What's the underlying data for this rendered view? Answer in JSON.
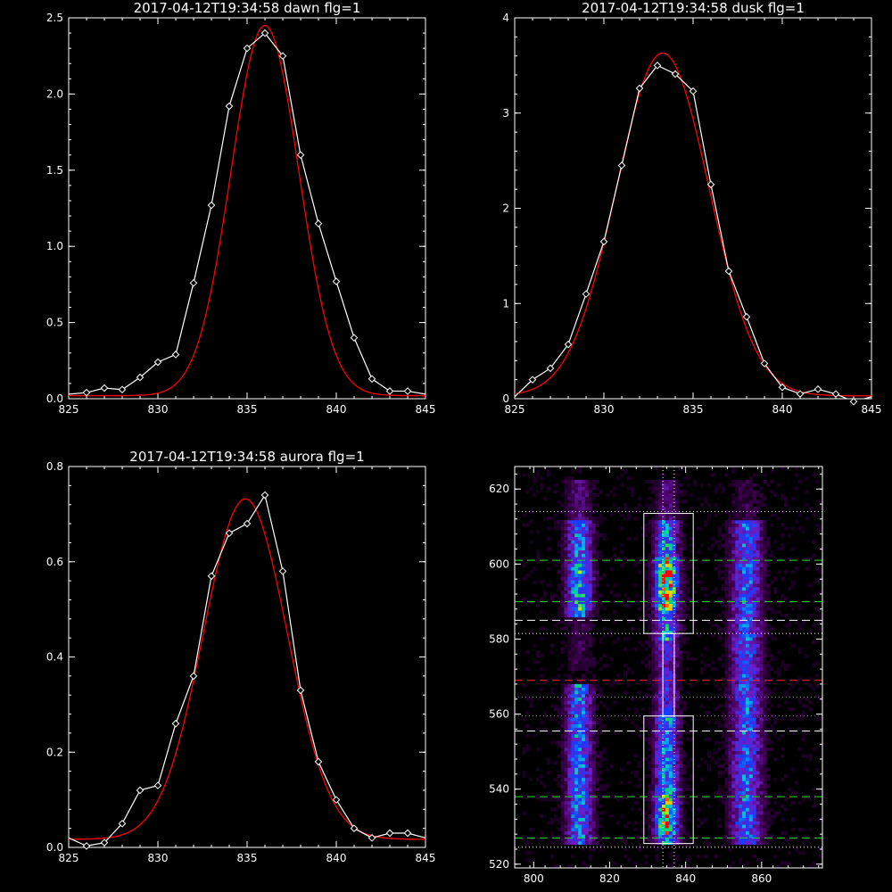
{
  "colors": {
    "background": "#000000",
    "data": "#ffffff",
    "fit": "#ff0000",
    "green_guide": "#22dd22",
    "red_guide": "#ff2222",
    "white_guide": "#ffffff"
  },
  "chart_data": [
    {
      "type": "line",
      "title": "2017-04-12T19:34:58 dawn flg=1",
      "xlim": [
        825,
        845
      ],
      "ylim": [
        0,
        2.5
      ],
      "xticks": [
        "825",
        "830",
        "835",
        "840",
        "845"
      ],
      "yticks": [
        "0.0",
        "0.5",
        "1.0",
        "1.5",
        "2.0",
        "2.5"
      ],
      "series": [
        {
          "role": "data",
          "marker": "diamond",
          "x": [
            825,
            826,
            827,
            828,
            829,
            830,
            831,
            832,
            833,
            834,
            835,
            836,
            837,
            838,
            839,
            840,
            841,
            842,
            843,
            844,
            845
          ],
          "y": [
            0.03,
            0.04,
            0.07,
            0.06,
            0.14,
            0.24,
            0.29,
            0.76,
            1.27,
            1.92,
            2.3,
            2.4,
            2.25,
            1.6,
            1.15,
            0.77,
            0.4,
            0.13,
            0.05,
            0.05,
            0.03
          ]
        },
        {
          "role": "fit",
          "center": 836.0,
          "amplitude": 2.43,
          "sigma": 1.9,
          "offset": 0.02
        }
      ]
    },
    {
      "type": "line",
      "title": "2017-04-12T19:34:58 dusk flg=1",
      "xlim": [
        825,
        845
      ],
      "ylim": [
        0,
        4
      ],
      "xticks": [
        "825",
        "830",
        "835",
        "840",
        "845"
      ],
      "yticks": [
        "0",
        "1",
        "2",
        "3",
        "4"
      ],
      "series": [
        {
          "role": "data",
          "marker": "diamond",
          "x": [
            825,
            826,
            827,
            828,
            829,
            830,
            831,
            832,
            833,
            834,
            835,
            836,
            837,
            838,
            839,
            840,
            841,
            842,
            843,
            844,
            845
          ],
          "y": [
            0.02,
            0.2,
            0.32,
            0.57,
            1.1,
            1.65,
            2.45,
            3.26,
            3.5,
            3.41,
            3.23,
            2.25,
            1.34,
            0.86,
            0.37,
            0.12,
            0.05,
            0.1,
            0.05,
            -0.03,
            0.02
          ]
        },
        {
          "role": "fit",
          "center": 833.3,
          "amplitude": 3.6,
          "sigma": 2.6,
          "offset": 0.03
        }
      ]
    },
    {
      "type": "line",
      "title": "2017-04-12T19:34:58 aurora flg=1",
      "xlim": [
        825,
        845
      ],
      "ylim": [
        0,
        0.8
      ],
      "xticks": [
        "825",
        "830",
        "835",
        "840",
        "845"
      ],
      "yticks": [
        "0.0",
        "0.2",
        "0.4",
        "0.6",
        "0.8"
      ],
      "series": [
        {
          "role": "data",
          "marker": "diamond",
          "x": [
            825,
            826,
            827,
            828,
            829,
            830,
            831,
            832,
            833,
            834,
            835,
            836,
            837,
            838,
            839,
            840,
            841,
            842,
            843,
            844,
            845
          ],
          "y": [
            0.02,
            0.003,
            0.01,
            0.05,
            0.12,
            0.13,
            0.26,
            0.36,
            0.57,
            0.66,
            0.68,
            0.74,
            0.58,
            0.33,
            0.18,
            0.1,
            0.04,
            0.02,
            0.03,
            0.03,
            0.02
          ]
        },
        {
          "role": "fit",
          "center": 834.9,
          "amplitude": 0.715,
          "sigma": 2.35,
          "offset": 0.017
        }
      ]
    },
    {
      "type": "heatmap",
      "xlim": [
        795,
        876
      ],
      "ylim": [
        519,
        626
      ],
      "xticks": [
        "800",
        "820",
        "840",
        "860"
      ],
      "yticks": [
        "520",
        "540",
        "560",
        "580",
        "600",
        "620"
      ],
      "columns_centers": [
        812,
        835,
        856
      ],
      "boxes": [
        {
          "x0": 829,
          "x1": 842,
          "y0": 581.5,
          "y1": 613.5
        },
        {
          "x0": 829,
          "x1": 842,
          "y0": 525.5,
          "y1": 559.5
        },
        {
          "x0": 834,
          "x1": 837,
          "y0": 559.5,
          "y1": 581.5
        }
      ],
      "hlines": [
        {
          "y": 614,
          "color": "white",
          "style": "dotted"
        },
        {
          "y": 601,
          "color": "green",
          "style": "dashed"
        },
        {
          "y": 590,
          "color": "green",
          "style": "dashed"
        },
        {
          "y": 585,
          "color": "white",
          "style": "dashed"
        },
        {
          "y": 581.5,
          "color": "white",
          "style": "dotted"
        },
        {
          "y": 569,
          "color": "red",
          "style": "dashed"
        },
        {
          "y": 564.5,
          "color": "red",
          "style": "dotted"
        },
        {
          "y": 559.5,
          "color": "red",
          "style": "dotted"
        },
        {
          "y": 555.5,
          "color": "white",
          "style": "dashed"
        },
        {
          "y": 538,
          "color": "green",
          "style": "dashed"
        },
        {
          "y": 527,
          "color": "green",
          "style": "dashed"
        },
        {
          "y": 524.5,
          "color": "white",
          "style": "dotted"
        }
      ],
      "vlines": [
        {
          "x": 834,
          "color": "white",
          "style": "dotted"
        },
        {
          "x": 837,
          "color": "white",
          "style": "dotted"
        }
      ]
    }
  ]
}
